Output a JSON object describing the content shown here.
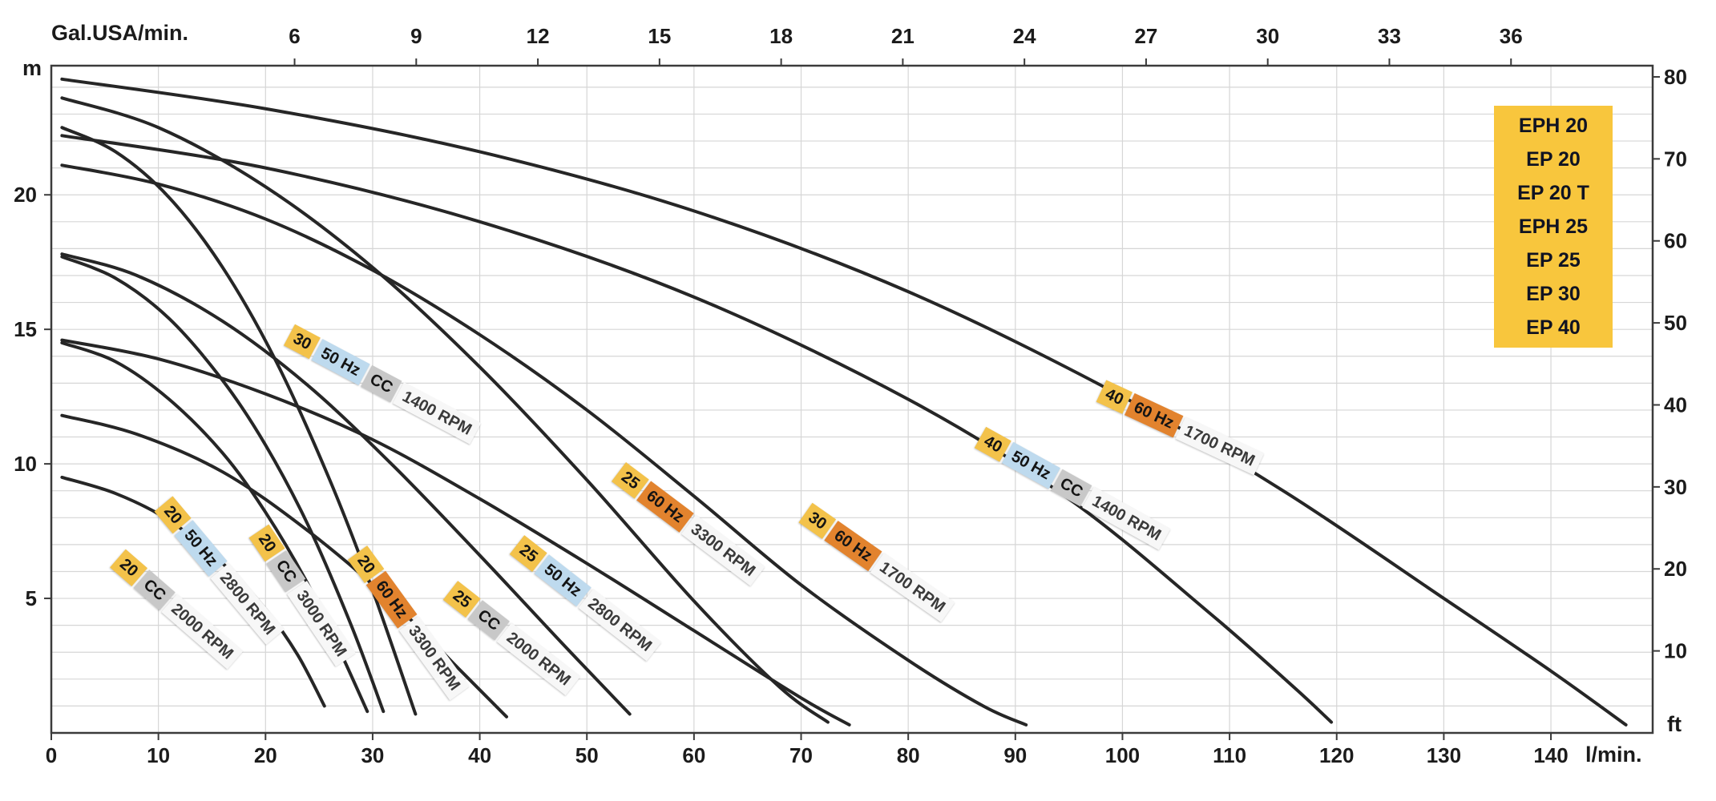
{
  "colors": {
    "curve": "#262626",
    "grid": "#d6d6d6",
    "axis": "#3b3b3b",
    "text": "#1b1b1b",
    "legend_bg": "#F8C63D",
    "legend_text": "#101322",
    "tag_num": "#F3C24A",
    "tag_50hz": "#BEDAEE",
    "tag_60hz": "#E2832E",
    "tag_cc": "#C8C8C8",
    "tag_rpm": "#F7F7F7"
  },
  "chart_data": {
    "type": "line",
    "title": "",
    "x_axis_bottom": {
      "label": "l/min.",
      "ticks": [
        0,
        10,
        20,
        30,
        40,
        50,
        60,
        70,
        80,
        90,
        100,
        110,
        120,
        130,
        140
      ],
      "range": [
        0,
        149.5
      ]
    },
    "x_axis_top": {
      "label": "Gal.USA/min.",
      "ticks": [
        6,
        9,
        12,
        15,
        18,
        21,
        24,
        27,
        30,
        33,
        36
      ],
      "unit_per_lmin": 3.78541
    },
    "y_axis_left": {
      "label": "m",
      "ticks": [
        5,
        10,
        15,
        20
      ],
      "range_m": [
        0,
        24.8
      ]
    },
    "y_axis_right": {
      "label": "ft",
      "ticks": [
        10,
        20,
        30,
        40,
        50,
        60,
        70,
        80
      ],
      "m_per_ft": 0.3048
    },
    "grid": {
      "x_step_lmin": 10,
      "y_step_m": 1
    },
    "legend": {
      "position": "top-right",
      "entries": [
        "EPH 20",
        "EP 20",
        "EP 20 T",
        "EPH 25",
        "EP 25",
        "EP 30",
        "EP 40"
      ]
    },
    "series": [
      {
        "id": "ep20-cc-2000",
        "name": "EP 20 CC 2000 RPM",
        "tags": [
          {
            "t": "20",
            "type": "num"
          },
          {
            "t": "CC",
            "type": "cc"
          },
          {
            "t": "2000 RPM",
            "type": "rpm"
          }
        ],
        "points_lmin_m": [
          [
            1,
            9.5
          ],
          [
            6,
            8.9
          ],
          [
            11,
            7.9
          ],
          [
            16,
            6.3
          ],
          [
            20,
            4.6
          ],
          [
            23,
            2.9
          ],
          [
            25.5,
            1.0
          ]
        ],
        "label": {
          "q": 6.2,
          "h": 6.5,
          "angle": 41
        }
      },
      {
        "id": "ep20-50hz-2800",
        "name": "EP 20 50 Hz 2800 RPM",
        "tags": [
          {
            "t": "20",
            "type": "num"
          },
          {
            "t": "50 Hz",
            "type": "50hz"
          },
          {
            "t": "2800 RPM",
            "type": "rpm"
          }
        ],
        "points_lmin_m": [
          [
            1,
            14.5
          ],
          [
            6,
            13.8
          ],
          [
            11,
            12.4
          ],
          [
            16,
            10.4
          ],
          [
            20,
            8.2
          ],
          [
            24,
            5.5
          ],
          [
            27,
            3.0
          ],
          [
            29.5,
            0.8
          ]
        ],
        "label": {
          "q": 10.5,
          "h": 8.5,
          "angle": 50
        }
      },
      {
        "id": "ep20-cc-3000",
        "name": "EP 20 CC 3000 RPM",
        "tags": [
          {
            "t": "20",
            "type": "num"
          },
          {
            "t": "CC",
            "type": "cc"
          },
          {
            "t": "3000 RPM",
            "type": "rpm"
          }
        ],
        "points_lmin_m": [
          [
            1,
            17.7
          ],
          [
            6,
            16.9
          ],
          [
            11,
            15.4
          ],
          [
            16,
            13.1
          ],
          [
            20,
            10.7
          ],
          [
            24,
            7.7
          ],
          [
            28,
            4.0
          ],
          [
            31,
            0.8
          ]
        ],
        "label": {
          "q": 19.4,
          "h": 7.5,
          "angle": 56
        }
      },
      {
        "id": "ep20-60hz-3300",
        "name": "EP 20 60 Hz 3300 RPM",
        "tags": [
          {
            "t": "20",
            "type": "num"
          },
          {
            "t": "60 Hz",
            "type": "60hz"
          },
          {
            "t": "3300 RPM",
            "type": "rpm"
          }
        ],
        "points_lmin_m": [
          [
            1,
            22.5
          ],
          [
            6,
            21.6
          ],
          [
            11,
            19.9
          ],
          [
            16,
            17.3
          ],
          [
            21,
            13.8
          ],
          [
            26,
            9.4
          ],
          [
            30,
            5.3
          ],
          [
            34,
            0.7
          ]
        ],
        "label": {
          "q": 28.6,
          "h": 6.7,
          "angle": 54
        }
      },
      {
        "id": "ep25-cc-2000",
        "name": "EP 25 CC 2000 RPM",
        "tags": [
          {
            "t": "25",
            "type": "num"
          },
          {
            "t": "CC",
            "type": "cc"
          },
          {
            "t": "2000 RPM",
            "type": "rpm"
          }
        ],
        "points_lmin_m": [
          [
            1,
            11.8
          ],
          [
            8,
            11.1
          ],
          [
            16,
            9.7
          ],
          [
            24,
            7.5
          ],
          [
            32,
            4.8
          ],
          [
            38,
            2.4
          ],
          [
            42.5,
            0.6
          ]
        ],
        "label": {
          "q": 37.3,
          "h": 5.3,
          "angle": 38
        }
      },
      {
        "id": "ep25-50hz-2800",
        "name": "EP 25 50 Hz 2800 RPM",
        "tags": [
          {
            "t": "25",
            "type": "num"
          },
          {
            "t": "50 Hz",
            "type": "50hz"
          },
          {
            "t": "2800 RPM",
            "type": "rpm"
          }
        ],
        "points_lmin_m": [
          [
            1,
            17.8
          ],
          [
            8,
            17.0
          ],
          [
            16,
            15.3
          ],
          [
            24,
            12.9
          ],
          [
            32,
            9.9
          ],
          [
            40,
            6.6
          ],
          [
            48,
            3.2
          ],
          [
            54,
            0.7
          ]
        ],
        "label": {
          "q": 43.5,
          "h": 7.0,
          "angle": 38
        }
      },
      {
        "id": "ep25-60hz-3300",
        "name": "EP 25 60 Hz 3300 RPM",
        "tags": [
          {
            "t": "25",
            "type": "num"
          },
          {
            "t": "60 Hz",
            "type": "60hz"
          },
          {
            "t": "3300 RPM",
            "type": "rpm"
          }
        ],
        "points_lmin_m": [
          [
            1,
            23.6
          ],
          [
            10,
            22.5
          ],
          [
            20,
            20.3
          ],
          [
            30,
            17.3
          ],
          [
            40,
            13.6
          ],
          [
            50,
            9.4
          ],
          [
            60,
            4.9
          ],
          [
            68,
            1.7
          ],
          [
            72.5,
            0.4
          ]
        ],
        "label": {
          "q": 53.0,
          "h": 9.7,
          "angle": 37
        }
      },
      {
        "id": "ep30-50hz-cc-1400",
        "name": "EP 30 50 Hz CC 1400 RPM",
        "tags": [
          {
            "t": "30",
            "type": "num"
          },
          {
            "t": "50 Hz",
            "type": "50hz"
          },
          {
            "t": "CC",
            "type": "cc"
          },
          {
            "t": "1400 RPM",
            "type": "rpm"
          }
        ],
        "points_lmin_m": [
          [
            1,
            14.6
          ],
          [
            10,
            13.9
          ],
          [
            20,
            12.6
          ],
          [
            30,
            10.9
          ],
          [
            40,
            8.7
          ],
          [
            50,
            6.3
          ],
          [
            60,
            3.8
          ],
          [
            70,
            1.3
          ],
          [
            74.5,
            0.3
          ]
        ],
        "label": {
          "q": 22.2,
          "h": 14.8,
          "angle": 28
        }
      },
      {
        "id": "ep30-60hz-1700",
        "name": "EP 30 60 Hz 1700 RPM",
        "tags": [
          {
            "t": "30",
            "type": "num"
          },
          {
            "t": "60 Hz",
            "type": "60hz"
          },
          {
            "t": "1700 RPM",
            "type": "rpm"
          }
        ],
        "points_lmin_m": [
          [
            1,
            21.1
          ],
          [
            10,
            20.4
          ],
          [
            20,
            19.1
          ],
          [
            30,
            17.2
          ],
          [
            40,
            14.8
          ],
          [
            50,
            12.0
          ],
          [
            60,
            8.8
          ],
          [
            70,
            5.5
          ],
          [
            80,
            2.7
          ],
          [
            87,
            1.0
          ],
          [
            91,
            0.3
          ]
        ],
        "label": {
          "q": 70.4,
          "h": 8.2,
          "angle": 35
        }
      },
      {
        "id": "ep40-50hz-cc-1400",
        "name": "EP 40 50 Hz CC 1400 RPM",
        "tags": [
          {
            "t": "40",
            "type": "num"
          },
          {
            "t": "50 Hz",
            "type": "50hz"
          },
          {
            "t": "CC",
            "type": "cc"
          },
          {
            "t": "1400 RPM",
            "type": "rpm"
          }
        ],
        "points_lmin_m": [
          [
            1,
            22.2
          ],
          [
            20,
            21.0
          ],
          [
            40,
            19.0
          ],
          [
            60,
            16.2
          ],
          [
            80,
            12.4
          ],
          [
            95,
            8.7
          ],
          [
            108,
            4.5
          ],
          [
            116,
            1.7
          ],
          [
            119.5,
            0.4
          ]
        ],
        "label": {
          "q": 86.7,
          "h": 11.0,
          "angle": 29
        }
      },
      {
        "id": "ep40-60hz-1700",
        "name": "EP 40 60 Hz 1700 RPM",
        "tags": [
          {
            "t": "40",
            "type": "num"
          },
          {
            "t": "60 Hz",
            "type": "60hz"
          },
          {
            "t": "1700 RPM",
            "type": "rpm"
          }
        ],
        "points_lmin_m": [
          [
            1,
            24.3
          ],
          [
            20,
            23.2
          ],
          [
            40,
            21.6
          ],
          [
            60,
            19.4
          ],
          [
            80,
            16.4
          ],
          [
            100,
            12.5
          ],
          [
            115,
            9.0
          ],
          [
            130,
            5.0
          ],
          [
            140,
            2.3
          ],
          [
            147,
            0.3
          ]
        ],
        "label": {
          "q": 98.0,
          "h": 12.7,
          "angle": 25
        }
      }
    ]
  }
}
